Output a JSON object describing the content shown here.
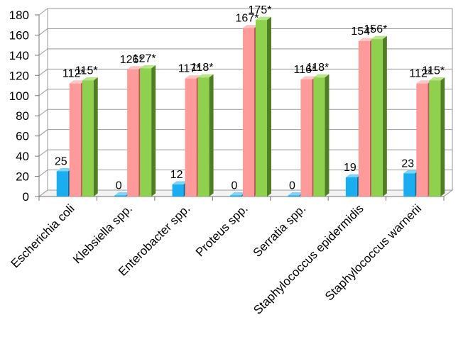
{
  "chart_data": {
    "type": "bar",
    "title": "",
    "xlabel": "",
    "ylabel": "",
    "ylim": [
      0,
      180
    ],
    "yticks": [
      0,
      20,
      40,
      60,
      80,
      100,
      120,
      140,
      160,
      180
    ],
    "grid": true,
    "legend": "none",
    "categories": [
      "Escherichia coli",
      "Klebsiella spp.",
      "Enterobacter spp.",
      "Proteus spp.",
      "Serratia spp.",
      "Staphylococcus epidermidis",
      "Staphylococcus warnerii"
    ],
    "series": [
      {
        "values": [
          25,
          0,
          12,
          0,
          0,
          19,
          23
        ],
        "labels": [
          "25",
          "0",
          "12",
          "0",
          "0",
          "19",
          "23"
        ],
        "color": "#1aaef0",
        "side_color": "#0a6fa0",
        "top_color": "#7fd3f8"
      },
      {
        "values": [
          112,
          126,
          117,
          167,
          116,
          154,
          112
        ],
        "labels": [
          "112*",
          "126*",
          "117*",
          "167*",
          "116*",
          "154*",
          "112*"
        ],
        "color": "#ff9a9a",
        "side_color": "#c05a5a",
        "top_color": "#ffc4c4"
      },
      {
        "values": [
          115,
          127,
          118,
          175,
          118,
          156,
          115
        ],
        "labels": [
          "115*",
          "127*",
          "118*",
          "175*",
          "118*",
          "156*",
          "115*"
        ],
        "color": "#8fd14f",
        "side_color": "#4f7f22",
        "top_color": "#b9e58c"
      }
    ]
  }
}
